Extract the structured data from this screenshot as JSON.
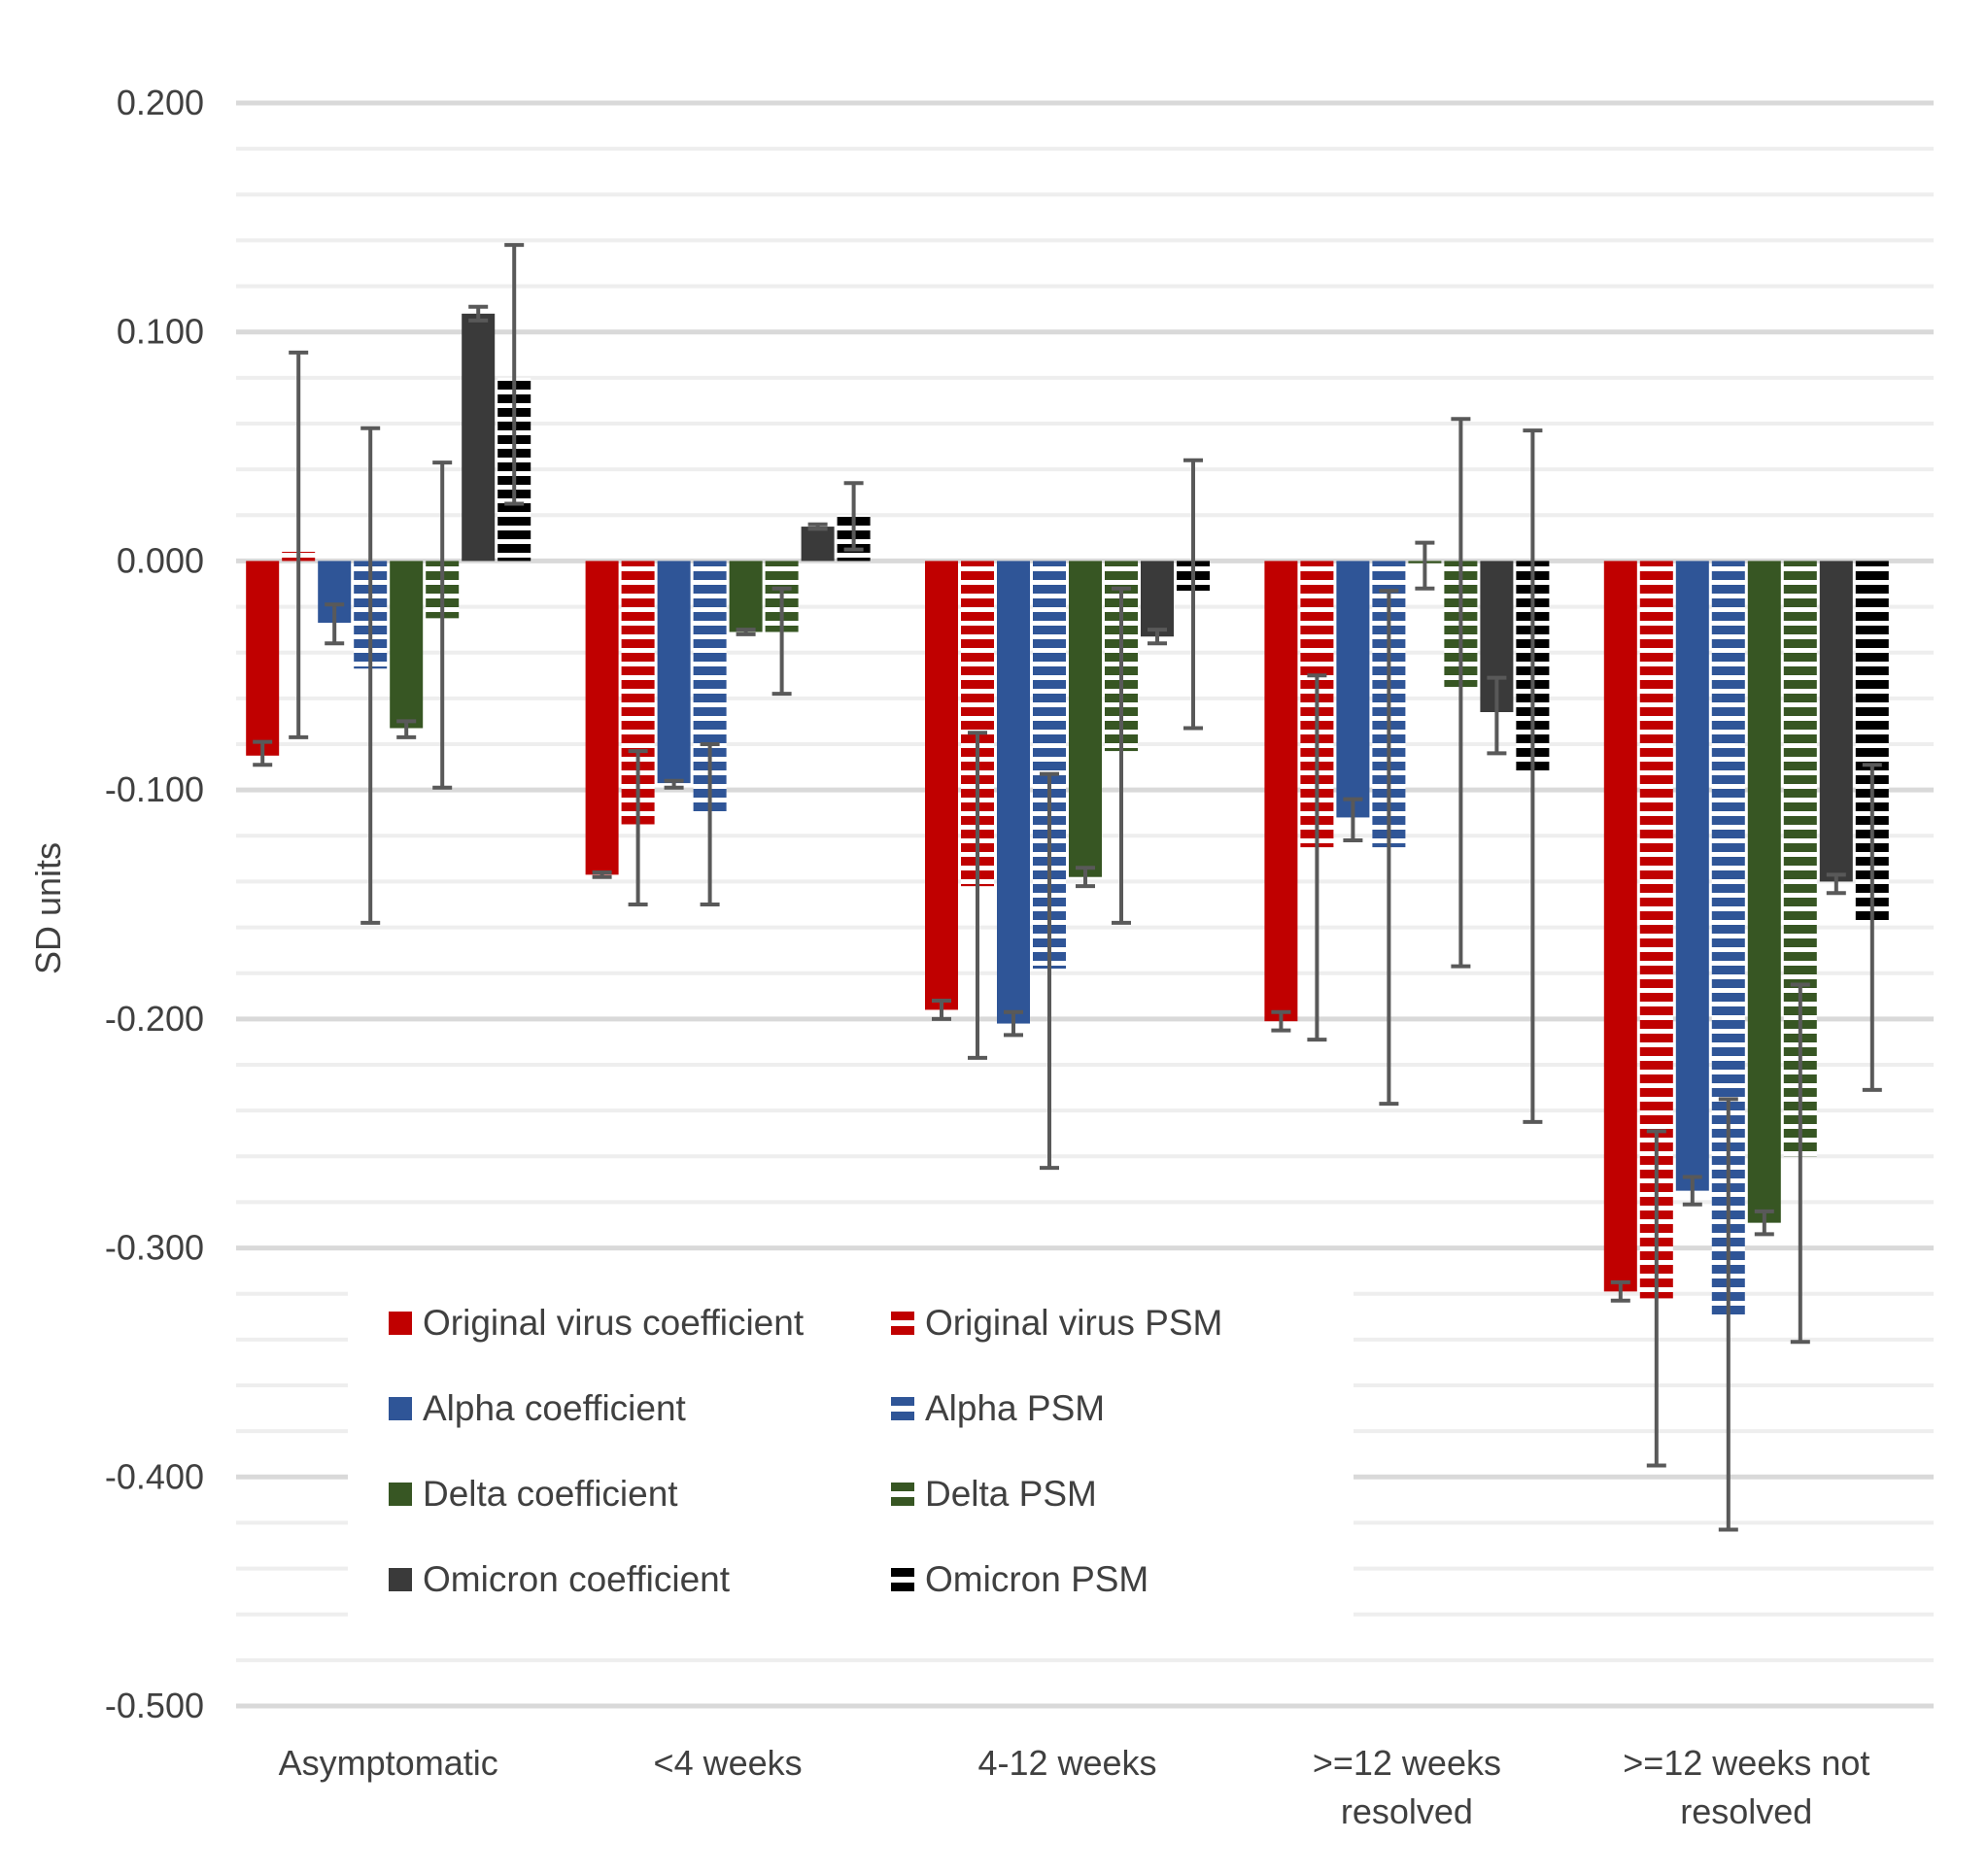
{
  "chart_data": {
    "type": "bar",
    "title": "",
    "xlabel": "",
    "ylabel": "SD units",
    "ylim": [
      -0.5,
      0.2
    ],
    "y_ticks": [
      0.2,
      0.1,
      0.0,
      -0.1,
      -0.2,
      -0.3,
      -0.4,
      -0.5
    ],
    "y_tick_labels": [
      "0.200",
      "0.100",
      "0.000",
      "-0.100",
      "-0.200",
      "-0.300",
      "-0.400",
      "-0.500"
    ],
    "minor_grid_step": 0.02,
    "grid": true,
    "legend_position": "bottom-left",
    "categories": [
      [
        "Asymptomatic"
      ],
      [
        "<4 weeks"
      ],
      [
        "4-12 weeks"
      ],
      [
        ">=12 weeks",
        "resolved"
      ],
      [
        ">=12 weeks not",
        "resolved"
      ]
    ],
    "series": [
      {
        "name": "Original virus coefficient",
        "color": "#C00000",
        "pattern": "solid",
        "values": [
          -0.085,
          -0.137,
          -0.196,
          -0.201,
          -0.319
        ],
        "err_low": [
          -0.089,
          -0.138,
          -0.2,
          -0.205,
          -0.323
        ],
        "err_high": [
          -0.079,
          -0.136,
          -0.192,
          -0.197,
          -0.315
        ]
      },
      {
        "name": "Original virus PSM",
        "color": "#C00000",
        "pattern": "dashed",
        "values": [
          0.004,
          -0.115,
          -0.142,
          -0.125,
          -0.322
        ],
        "err_low": [
          -0.077,
          -0.15,
          -0.217,
          -0.209,
          -0.395
        ],
        "err_high": [
          0.091,
          -0.083,
          -0.075,
          -0.05,
          -0.249
        ]
      },
      {
        "name": "Alpha coefficient",
        "color": "#2F5597",
        "pattern": "solid",
        "values": [
          -0.027,
          -0.097,
          -0.202,
          -0.112,
          -0.275
        ],
        "err_low": [
          -0.036,
          -0.099,
          -0.207,
          -0.122,
          -0.281
        ],
        "err_high": [
          -0.019,
          -0.096,
          -0.197,
          -0.104,
          -0.269
        ]
      },
      {
        "name": "Alpha PSM",
        "color": "#2F5597",
        "pattern": "dashed",
        "values": [
          -0.047,
          -0.11,
          -0.178,
          -0.125,
          -0.33
        ],
        "err_low": [
          -0.158,
          -0.15,
          -0.265,
          -0.237,
          -0.423
        ],
        "err_high": [
          0.058,
          -0.08,
          -0.093,
          -0.013,
          -0.235
        ]
      },
      {
        "name": "Delta coefficient",
        "color": "#375623",
        "pattern": "solid",
        "values": [
          -0.073,
          -0.031,
          -0.138,
          -0.001,
          -0.289
        ],
        "err_low": [
          -0.077,
          -0.032,
          -0.142,
          -0.012,
          -0.294
        ],
        "err_high": [
          -0.07,
          -0.03,
          -0.134,
          0.008,
          -0.284
        ]
      },
      {
        "name": "Delta PSM",
        "color": "#375623",
        "pattern": "dashed",
        "values": [
          -0.025,
          -0.031,
          -0.083,
          -0.055,
          -0.26
        ],
        "err_low": [
          -0.099,
          -0.058,
          -0.158,
          -0.177,
          -0.341
        ],
        "err_high": [
          0.043,
          -0.012,
          -0.012,
          0.062,
          -0.185
        ]
      },
      {
        "name": "Omicron coefficient",
        "color": "#3A3A3A",
        "pattern": "solid",
        "values": [
          0.108,
          0.015,
          -0.033,
          -0.066,
          -0.14
        ],
        "err_low": [
          0.105,
          0.014,
          -0.036,
          -0.084,
          -0.145
        ],
        "err_high": [
          0.111,
          0.016,
          -0.03,
          -0.051,
          -0.137
        ]
      },
      {
        "name": "Omicron PSM",
        "color": "#000000",
        "pattern": "dashed",
        "values": [
          0.08,
          0.02,
          -0.013,
          -0.093,
          -0.158
        ],
        "err_low": [
          0.025,
          0.005,
          -0.073,
          -0.245,
          -0.231
        ],
        "err_high": [
          0.138,
          0.034,
          0.044,
          0.057,
          -0.089
        ]
      }
    ]
  }
}
